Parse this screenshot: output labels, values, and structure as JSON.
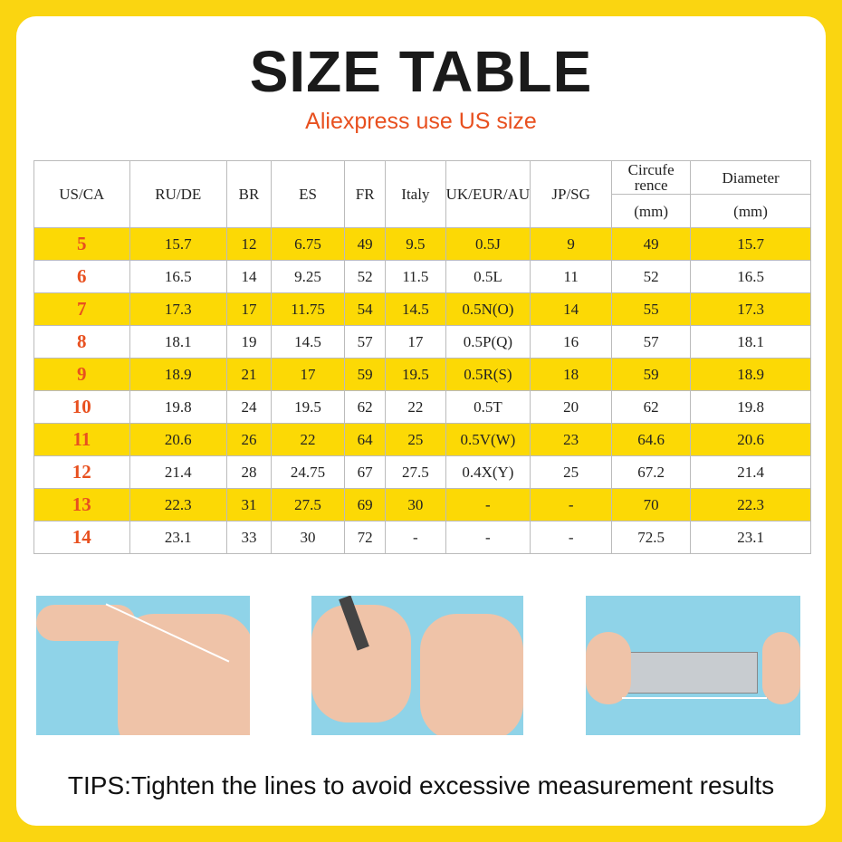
{
  "title": "SIZE TABLE",
  "subtitle": "Aliexpress use US size",
  "table": {
    "headers": [
      "US/CA",
      "RU/DE",
      "BR",
      "ES",
      "FR",
      "Italy",
      "UK/EUR/AU",
      "JP/SG",
      "Circufe rence",
      "Diameter"
    ],
    "units": [
      "(mm)",
      "(mm)"
    ],
    "rows": [
      [
        "5",
        "15.7",
        "12",
        "6.75",
        "49",
        "9.5",
        "0.5J",
        "9",
        "49",
        "15.7"
      ],
      [
        "6",
        "16.5",
        "14",
        "9.25",
        "52",
        "11.5",
        "0.5L",
        "11",
        "52",
        "16.5"
      ],
      [
        "7",
        "17.3",
        "17",
        "11.75",
        "54",
        "14.5",
        "0.5N(O)",
        "14",
        "55",
        "17.3"
      ],
      [
        "8",
        "18.1",
        "19",
        "14.5",
        "57",
        "17",
        "0.5P(Q)",
        "16",
        "57",
        "18.1"
      ],
      [
        "9",
        "18.9",
        "21",
        "17",
        "59",
        "19.5",
        "0.5R(S)",
        "18",
        "59",
        "18.9"
      ],
      [
        "10",
        "19.8",
        "24",
        "19.5",
        "62",
        "22",
        "0.5T",
        "20",
        "62",
        "19.8"
      ],
      [
        "11",
        "20.6",
        "26",
        "22",
        "64",
        "25",
        "0.5V(W)",
        "23",
        "64.6",
        "20.6"
      ],
      [
        "12",
        "21.4",
        "28",
        "24.75",
        "67",
        "27.5",
        "0.4X(Y)",
        "25",
        "67.2",
        "21.4"
      ],
      [
        "13",
        "22.3",
        "31",
        "27.5",
        "69",
        "30",
        "-",
        "-",
        "70",
        "22.3"
      ],
      [
        "14",
        "23.1",
        "33",
        "30",
        "72",
        "-",
        "-",
        "-",
        "72.5",
        "23.1"
      ]
    ]
  },
  "photos": [
    "wrap-string-around-finger",
    "mark-string-with-pen",
    "measure-string-with-ruler"
  ],
  "tips": "TIPS:Tighten the lines to avoid excessive measurement results",
  "colors": {
    "background": "#fad511",
    "row_highlight": "#fcd905",
    "accent": "#e8501f"
  }
}
